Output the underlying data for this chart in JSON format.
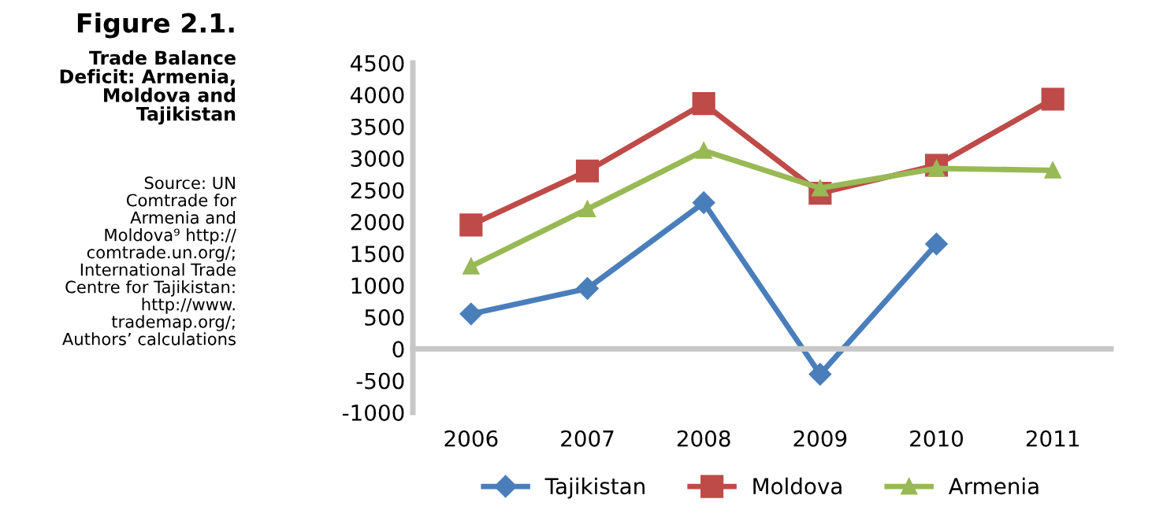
{
  "chart_data": {
    "type": "line",
    "title": "Figure 2.1.",
    "subtitle": "Trade Balance\nDeficit: Armenia,\nMoldova and\nTajikistan",
    "annotations": [
      "Source: UN\nComtrade for\nArmenia and\nMoldova⁹ http://\ncomtrade.un.org/;\nInternational Trade\nCentre for Tajikistan:\nhttp://www.\ntrademap.org/;\nAuthors’ calculations"
    ],
    "categories": [
      "2006",
      "2007",
      "2008",
      "2009",
      "2010",
      "2011"
    ],
    "series": [
      {
        "name": "Tajikistan",
        "color": "#4a7ebb",
        "marker": "diamond",
        "values": [
          550,
          950,
          2300,
          -400,
          1650,
          null
        ]
      },
      {
        "name": "Moldova",
        "color": "#be4b48",
        "marker": "square",
        "values": [
          1950,
          2800,
          3860,
          2450,
          2890,
          3930
        ]
      },
      {
        "name": "Armenia",
        "color": "#98b954",
        "marker": "triangle",
        "values": [
          1300,
          2200,
          3120,
          2530,
          2840,
          2810
        ]
      }
    ],
    "ylim": [
      -1000,
      4500
    ],
    "yticks": [
      -1000,
      -500,
      0,
      500,
      1000,
      1500,
      2000,
      2500,
      3000,
      3500,
      4000,
      4500
    ],
    "legend": "bottom",
    "line_style": "solid"
  }
}
